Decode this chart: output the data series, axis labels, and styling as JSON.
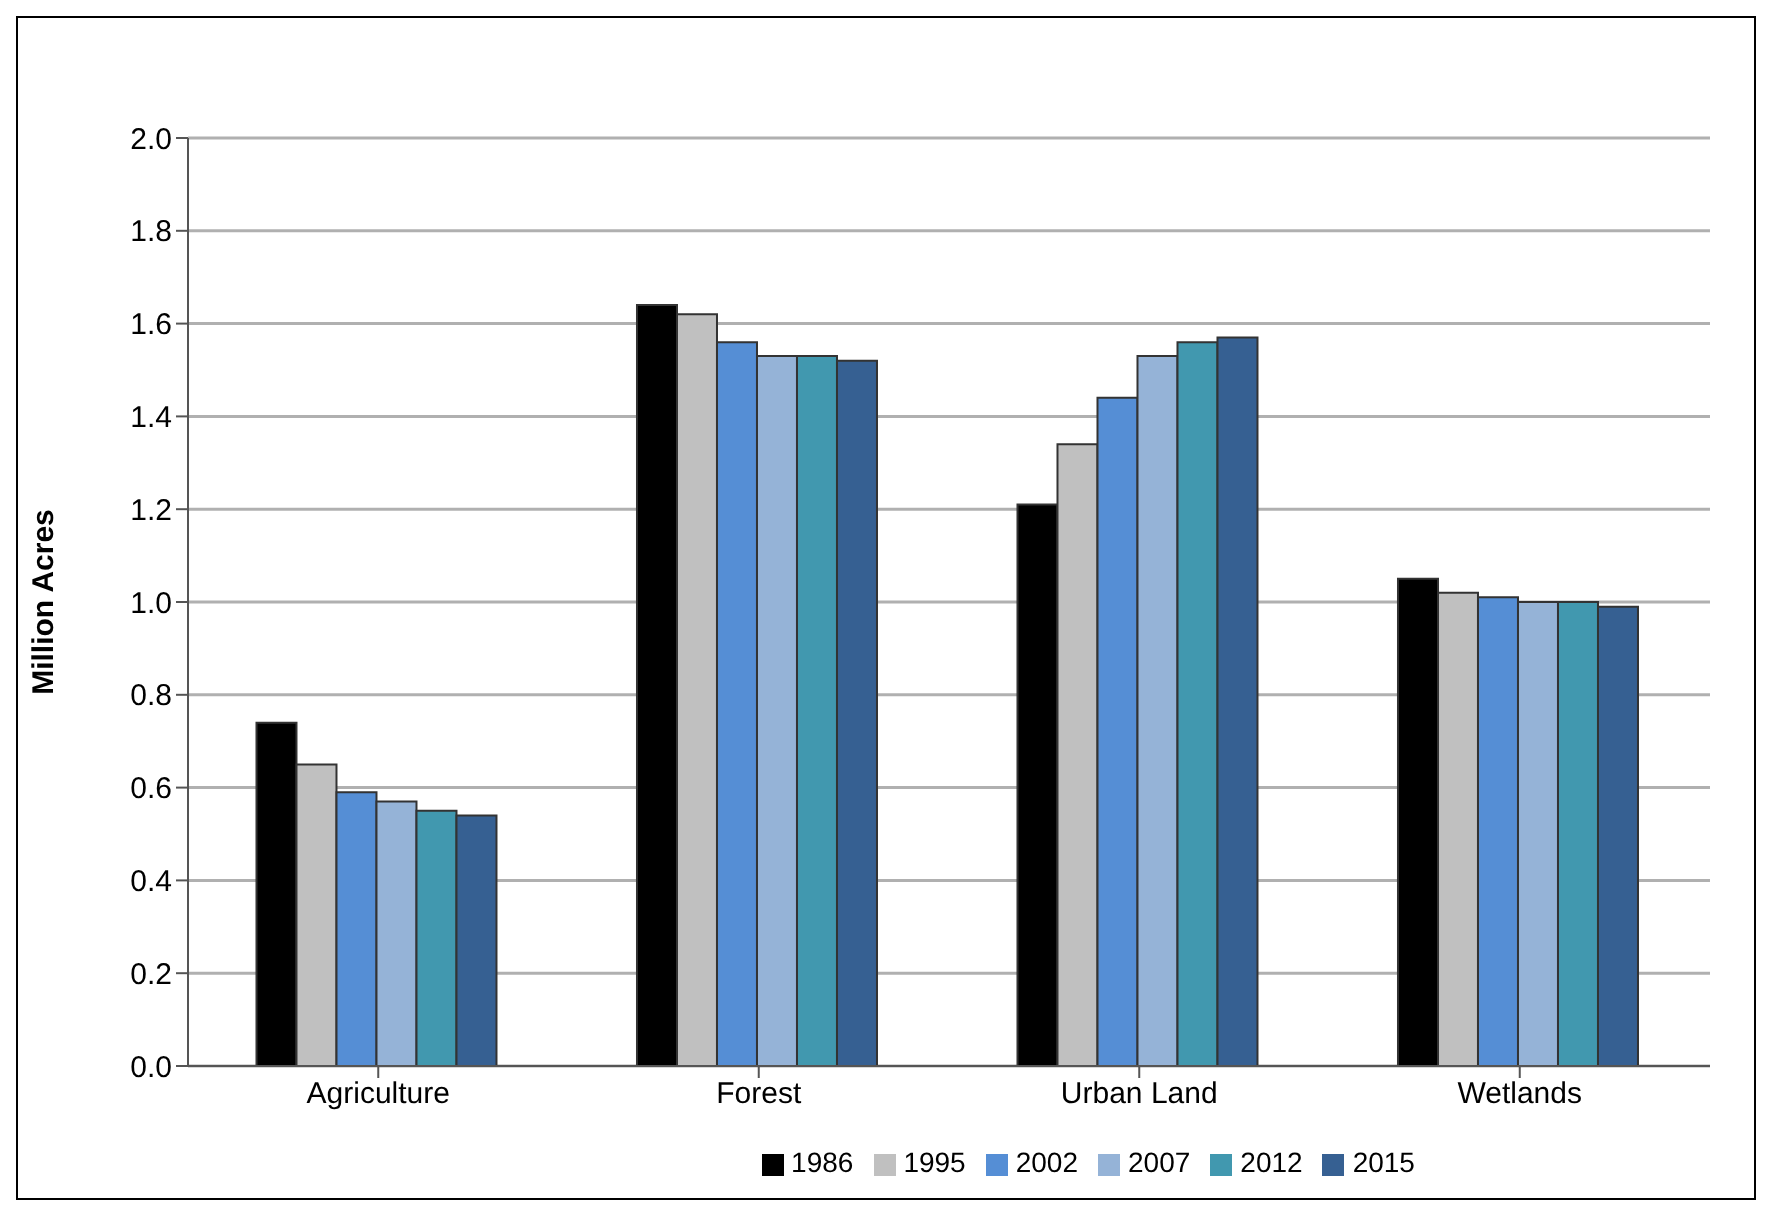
{
  "chart_data": {
    "type": "bar",
    "ylabel": "Million Acres",
    "categories": [
      "Agriculture",
      "Forest",
      "Urban Land",
      "Wetlands"
    ],
    "series": [
      {
        "name": "1986",
        "color": "#000000",
        "values": [
          0.74,
          1.64,
          1.21,
          1.05
        ]
      },
      {
        "name": "1995",
        "color": "#c0c0c0",
        "values": [
          0.65,
          1.62,
          1.34,
          1.02
        ]
      },
      {
        "name": "2002",
        "color": "#558ed5",
        "values": [
          0.59,
          1.56,
          1.44,
          1.01
        ]
      },
      {
        "name": "2007",
        "color": "#95b3d7",
        "values": [
          0.57,
          1.53,
          1.53,
          1.0
        ]
      },
      {
        "name": "2012",
        "color": "#4198af",
        "values": [
          0.55,
          1.53,
          1.56,
          1.0
        ]
      },
      {
        "name": "2015",
        "color": "#366092",
        "values": [
          0.54,
          1.52,
          1.57,
          0.99
        ]
      }
    ],
    "ylim": [
      0,
      2
    ],
    "yticks": [
      {
        "value": 0,
        "label": "0.0"
      },
      0.2,
      0.4,
      0.6,
      0.8,
      {
        "value": 1,
        "label": "1.0"
      },
      1.2,
      1.4,
      1.6,
      1.8,
      {
        "value": 2,
        "label": "2.0"
      }
    ],
    "grid": "y",
    "legend": "bottom"
  }
}
